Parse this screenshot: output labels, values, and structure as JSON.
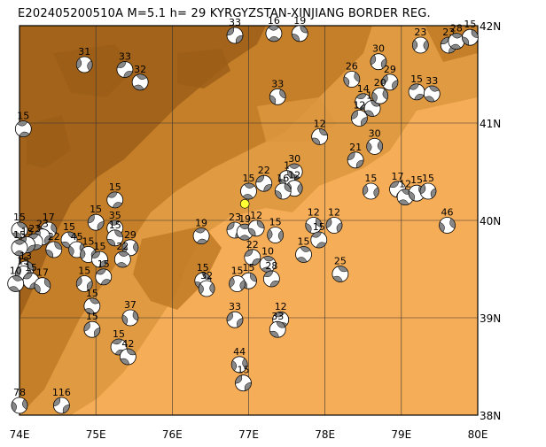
{
  "title": "E202405200510A M=5.1 h= 29 KYRGYZSTAN-XINJIANG BORDER REG.",
  "map": {
    "lon_range": [
      74,
      80
    ],
    "lat_range": [
      38,
      42
    ],
    "lon_ticks": [
      "74E",
      "75E",
      "76E",
      "77E",
      "78E",
      "79E",
      "80E"
    ],
    "lat_ticks": [
      "38N",
      "39N",
      "40N",
      "41N",
      "42N"
    ],
    "grid": true,
    "colors": {
      "lowland": "#f6ad57",
      "mid": "#dc973e",
      "high": "#c07a25",
      "peak": "#9c5e17",
      "beachball_fill": "#888888",
      "epicenter": "#ffff33"
    }
  },
  "epicenter": {
    "lon": 76.95,
    "lat": 40.17
  },
  "events": [
    {
      "lon": 76.82,
      "lat": 41.9,
      "label": "33"
    },
    {
      "lon": 77.33,
      "lat": 41.92,
      "label": "16"
    },
    {
      "lon": 77.67,
      "lat": 41.92,
      "label": "19"
    },
    {
      "lon": 79.25,
      "lat": 41.8,
      "label": "23"
    },
    {
      "lon": 79.62,
      "lat": 41.8,
      "label": "23"
    },
    {
      "lon": 79.72,
      "lat": 41.84,
      "label": "28"
    },
    {
      "lon": 79.9,
      "lat": 41.88,
      "label": "15"
    },
    {
      "lon": 74.85,
      "lat": 41.6,
      "label": "31"
    },
    {
      "lon": 75.38,
      "lat": 41.55,
      "label": "33"
    },
    {
      "lon": 75.58,
      "lat": 41.42,
      "label": "32"
    },
    {
      "lon": 77.38,
      "lat": 41.27,
      "label": "33"
    },
    {
      "lon": 78.7,
      "lat": 41.63,
      "label": "30"
    },
    {
      "lon": 79.2,
      "lat": 41.32,
      "label": "15"
    },
    {
      "lon": 79.4,
      "lat": 41.3,
      "label": "33"
    },
    {
      "lon": 78.35,
      "lat": 41.45,
      "label": "26"
    },
    {
      "lon": 78.85,
      "lat": 41.42,
      "label": "29"
    },
    {
      "lon": 78.5,
      "lat": 41.22,
      "label": "14"
    },
    {
      "lon": 78.62,
      "lat": 41.15,
      "label": "16"
    },
    {
      "lon": 78.72,
      "lat": 41.28,
      "label": "20"
    },
    {
      "lon": 78.45,
      "lat": 41.05,
      "label": "12"
    },
    {
      "lon": 74.05,
      "lat": 40.94,
      "label": "15"
    },
    {
      "lon": 77.93,
      "lat": 40.86,
      "label": "12"
    },
    {
      "lon": 78.65,
      "lat": 40.76,
      "label": "30"
    },
    {
      "lon": 78.4,
      "lat": 40.62,
      "label": "21"
    },
    {
      "lon": 77.6,
      "lat": 40.5,
      "label": "30"
    },
    {
      "lon": 77.5,
      "lat": 40.43,
      "label": "1"
    },
    {
      "lon": 77.6,
      "lat": 40.33,
      "label": "12"
    },
    {
      "lon": 77.2,
      "lat": 40.38,
      "label": "22"
    },
    {
      "lon": 77.0,
      "lat": 40.3,
      "label": "15"
    },
    {
      "lon": 77.45,
      "lat": 40.3,
      "label": "16"
    },
    {
      "lon": 78.6,
      "lat": 40.3,
      "label": "15"
    },
    {
      "lon": 78.95,
      "lat": 40.32,
      "label": "17"
    },
    {
      "lon": 79.05,
      "lat": 40.24,
      "label": "12"
    },
    {
      "lon": 79.2,
      "lat": 40.28,
      "label": "15"
    },
    {
      "lon": 79.35,
      "lat": 40.3,
      "label": "15"
    },
    {
      "lon": 75.25,
      "lat": 40.21,
      "label": "15"
    },
    {
      "lon": 74.0,
      "lat": 39.9,
      "label": "15"
    },
    {
      "lon": 74.38,
      "lat": 39.9,
      "label": "17"
    },
    {
      "lon": 74.3,
      "lat": 39.83,
      "label": "23"
    },
    {
      "lon": 74.2,
      "lat": 39.78,
      "label": "23"
    },
    {
      "lon": 74.65,
      "lat": 39.8,
      "label": "15"
    },
    {
      "lon": 74.75,
      "lat": 39.7,
      "label": "45"
    },
    {
      "lon": 75.0,
      "lat": 39.98,
      "label": "15"
    },
    {
      "lon": 75.25,
      "lat": 39.92,
      "label": "35"
    },
    {
      "lon": 75.25,
      "lat": 39.82,
      "label": "15"
    },
    {
      "lon": 75.45,
      "lat": 39.72,
      "label": "29"
    },
    {
      "lon": 74.1,
      "lat": 39.75,
      "label": "15"
    },
    {
      "lon": 74.0,
      "lat": 39.72,
      "label": "15"
    },
    {
      "lon": 74.45,
      "lat": 39.7,
      "label": "22"
    },
    {
      "lon": 74.9,
      "lat": 39.65,
      "label": "15"
    },
    {
      "lon": 75.05,
      "lat": 39.6,
      "label": "15"
    },
    {
      "lon": 75.35,
      "lat": 39.6,
      "label": "22"
    },
    {
      "lon": 74.08,
      "lat": 39.5,
      "label": "13"
    },
    {
      "lon": 74.05,
      "lat": 39.45,
      "label": "15"
    },
    {
      "lon": 74.15,
      "lat": 39.38,
      "label": "15"
    },
    {
      "lon": 73.95,
      "lat": 39.35,
      "label": "10"
    },
    {
      "lon": 74.3,
      "lat": 39.33,
      "label": "17"
    },
    {
      "lon": 74.85,
      "lat": 39.35,
      "label": "15"
    },
    {
      "lon": 75.1,
      "lat": 39.42,
      "label": "15"
    },
    {
      "lon": 74.95,
      "lat": 39.12,
      "label": "15"
    },
    {
      "lon": 75.45,
      "lat": 39.0,
      "label": "37"
    },
    {
      "lon": 74.95,
      "lat": 38.88,
      "label": "15"
    },
    {
      "lon": 75.3,
      "lat": 38.7,
      "label": "15"
    },
    {
      "lon": 75.42,
      "lat": 38.6,
      "label": "42"
    },
    {
      "lon": 74.0,
      "lat": 38.1,
      "label": "78"
    },
    {
      "lon": 74.55,
      "lat": 38.1,
      "label": "116"
    },
    {
      "lon": 76.38,
      "lat": 39.84,
      "label": "19"
    },
    {
      "lon": 76.4,
      "lat": 39.38,
      "label": "15"
    },
    {
      "lon": 76.45,
      "lat": 39.3,
      "label": "32"
    },
    {
      "lon": 76.82,
      "lat": 39.9,
      "label": "23"
    },
    {
      "lon": 76.95,
      "lat": 39.88,
      "label": "19"
    },
    {
      "lon": 77.1,
      "lat": 39.92,
      "label": "12"
    },
    {
      "lon": 77.35,
      "lat": 39.85,
      "label": "15"
    },
    {
      "lon": 77.05,
      "lat": 39.62,
      "label": "22"
    },
    {
      "lon": 77.25,
      "lat": 39.55,
      "label": "10"
    },
    {
      "lon": 77.0,
      "lat": 39.38,
      "label": "15"
    },
    {
      "lon": 76.85,
      "lat": 39.35,
      "label": "15"
    },
    {
      "lon": 77.3,
      "lat": 39.4,
      "label": "28"
    },
    {
      "lon": 77.72,
      "lat": 39.65,
      "label": "15"
    },
    {
      "lon": 77.85,
      "lat": 39.95,
      "label": "12"
    },
    {
      "lon": 78.12,
      "lat": 39.95,
      "label": "12"
    },
    {
      "lon": 77.92,
      "lat": 39.8,
      "label": "15"
    },
    {
      "lon": 78.2,
      "lat": 39.45,
      "label": "25"
    },
    {
      "lon": 79.6,
      "lat": 39.95,
      "label": "46"
    },
    {
      "lon": 76.82,
      "lat": 38.98,
      "label": "33"
    },
    {
      "lon": 77.42,
      "lat": 38.98,
      "label": "12"
    },
    {
      "lon": 77.38,
      "lat": 38.88,
      "label": "33"
    },
    {
      "lon": 76.88,
      "lat": 38.52,
      "label": "44"
    },
    {
      "lon": 76.93,
      "lat": 38.33,
      "label": "15"
    }
  ]
}
